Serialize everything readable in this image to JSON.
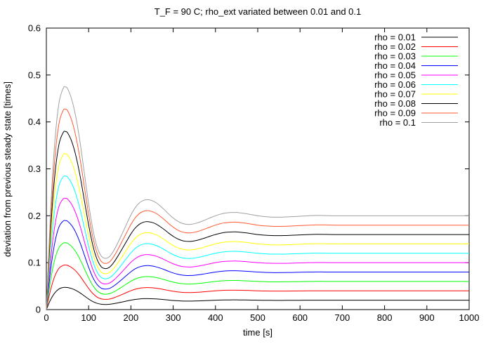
{
  "chart_data": {
    "type": "line",
    "title": "T_F = 90 C; rho_ext variated between 0.01 and 0.1",
    "xlabel": "time [s]",
    "ylabel": "deviation from previous steady state [times]",
    "xlim": [
      0,
      1000
    ],
    "ylim": [
      0,
      0.6
    ],
    "xticks": [
      0,
      100,
      200,
      300,
      400,
      500,
      600,
      700,
      800,
      900,
      1000
    ],
    "xtick_labels": [
      "0",
      "100",
      "200",
      "300",
      "400",
      "500",
      "600",
      "700",
      "800",
      "900",
      "1000"
    ],
    "yticks": [
      0,
      0.1,
      0.2,
      0.3,
      0.4,
      0.5,
      0.6
    ],
    "ytick_labels": [
      "0",
      "0.1",
      "0.2",
      "0.3",
      "0.4",
      "0.5",
      "0.6"
    ],
    "grid": false,
    "legend_position": "top-right",
    "x": [
      0,
      10,
      20,
      30,
      40,
      45,
      50,
      60,
      70,
      80,
      90,
      100,
      110,
      120,
      130,
      140,
      150,
      160,
      170,
      180,
      190,
      200,
      210,
      220,
      230,
      240,
      250,
      260,
      270,
      280,
      290,
      300,
      310,
      320,
      330,
      340,
      350,
      360,
      370,
      380,
      390,
      400,
      410,
      420,
      430,
      440,
      450,
      460,
      470,
      480,
      490,
      500,
      520,
      540,
      560,
      580,
      600,
      620,
      640,
      660,
      680,
      700,
      750,
      800,
      850,
      900,
      950,
      1000
    ],
    "series": [
      {
        "name": "rho = 0.01",
        "color": "#000000",
        "values": [
          0,
          0.021,
          0.0357,
          0.0441,
          0.0472,
          0.0474,
          0.0471,
          0.0448,
          0.0409,
          0.0355,
          0.029,
          0.0226,
          0.0171,
          0.0134,
          0.0114,
          0.0109,
          0.0114,
          0.0127,
          0.0144,
          0.0163,
          0.0183,
          0.0202,
          0.0217,
          0.0227,
          0.0233,
          0.0234,
          0.0232,
          0.0228,
          0.022,
          0.0212,
          0.0203,
          0.0195,
          0.0189,
          0.0184,
          0.0182,
          0.0182,
          0.0183,
          0.0186,
          0.0189,
          0.0193,
          0.0197,
          0.02,
          0.0203,
          0.0205,
          0.0206,
          0.0207,
          0.0207,
          0.0206,
          0.0205,
          0.0203,
          0.0202,
          0.02,
          0.0198,
          0.0197,
          0.0197,
          0.0198,
          0.0199,
          0.02,
          0.0201,
          0.02,
          0.02,
          0.02,
          0.02,
          0.02,
          0.02,
          0.02,
          0.02,
          0.02
        ]
      },
      {
        "name": "rho = 0.02",
        "color": "#ff0000",
        "values": [
          0,
          0.042,
          0.0714,
          0.0882,
          0.0944,
          0.0949,
          0.0943,
          0.0896,
          0.0818,
          0.071,
          0.058,
          0.0451,
          0.0342,
          0.0267,
          0.0228,
          0.0218,
          0.0227,
          0.0253,
          0.0288,
          0.0326,
          0.0365,
          0.0403,
          0.0434,
          0.0455,
          0.0466,
          0.0469,
          0.0465,
          0.0455,
          0.0441,
          0.0424,
          0.0406,
          0.0391,
          0.0378,
          0.0369,
          0.0364,
          0.0363,
          0.0366,
          0.0371,
          0.0378,
          0.0386,
          0.0393,
          0.04,
          0.0406,
          0.0411,
          0.0413,
          0.0414,
          0.0414,
          0.0412,
          0.041,
          0.0407,
          0.0403,
          0.04,
          0.0396,
          0.0394,
          0.0394,
          0.0396,
          0.0398,
          0.04,
          0.0401,
          0.0401,
          0.04,
          0.04,
          0.04,
          0.04,
          0.04,
          0.04,
          0.04,
          0.04
        ]
      },
      {
        "name": "rho = 0.03",
        "color": "#00ff00",
        "values": [
          0,
          0.063,
          0.1071,
          0.1323,
          0.1416,
          0.1423,
          0.1414,
          0.1344,
          0.1227,
          0.1065,
          0.087,
          0.0677,
          0.0513,
          0.0401,
          0.0342,
          0.0328,
          0.0341,
          0.038,
          0.0432,
          0.049,
          0.0548,
          0.0605,
          0.0651,
          0.0682,
          0.0699,
          0.0703,
          0.0697,
          0.0683,
          0.0661,
          0.0636,
          0.061,
          0.0586,
          0.0566,
          0.0553,
          0.0546,
          0.0545,
          0.0549,
          0.0557,
          0.0567,
          0.0578,
          0.059,
          0.06,
          0.0609,
          0.0616,
          0.0619,
          0.0621,
          0.0621,
          0.0618,
          0.0614,
          0.061,
          0.0605,
          0.06,
          0.0594,
          0.0591,
          0.0592,
          0.0594,
          0.0597,
          0.06,
          0.0602,
          0.0601,
          0.06,
          0.06,
          0.06,
          0.06,
          0.06,
          0.06,
          0.06,
          0.06
        ]
      },
      {
        "name": "rho = 0.04",
        "color": "#0000ff",
        "values": [
          0,
          0.084,
          0.1428,
          0.1764,
          0.1888,
          0.1897,
          0.1885,
          0.1792,
          0.1636,
          0.142,
          0.116,
          0.0902,
          0.0684,
          0.0535,
          0.0456,
          0.0437,
          0.0454,
          0.0507,
          0.0576,
          0.0653,
          0.0731,
          0.0806,
          0.0868,
          0.091,
          0.0932,
          0.0938,
          0.0929,
          0.091,
          0.0882,
          0.0849,
          0.0813,
          0.0781,
          0.0755,
          0.0737,
          0.0728,
          0.0727,
          0.0732,
          0.0743,
          0.0756,
          0.0771,
          0.0786,
          0.08,
          0.0812,
          0.0821,
          0.0826,
          0.0828,
          0.0828,
          0.0824,
          0.0819,
          0.0813,
          0.0806,
          0.08,
          0.0792,
          0.0788,
          0.0789,
          0.0792,
          0.0796,
          0.08,
          0.0802,
          0.0801,
          0.08,
          0.08,
          0.08,
          0.08,
          0.08,
          0.08,
          0.08,
          0.08
        ]
      },
      {
        "name": "rho = 0.05",
        "color": "#ff00ff",
        "values": [
          0,
          0.105,
          0.1785,
          0.2205,
          0.236,
          0.2372,
          0.2356,
          0.224,
          0.2045,
          0.1775,
          0.145,
          0.1128,
          0.0855,
          0.0668,
          0.057,
          0.0546,
          0.0568,
          0.0633,
          0.072,
          0.0816,
          0.0913,
          0.1008,
          0.1085,
          0.1137,
          0.1165,
          0.1172,
          0.1161,
          0.1138,
          0.1102,
          0.1061,
          0.1016,
          0.0976,
          0.0944,
          0.0921,
          0.091,
          0.0908,
          0.0915,
          0.0928,
          0.0945,
          0.0964,
          0.0983,
          0.1,
          0.1015,
          0.1026,
          0.1032,
          0.1035,
          0.1035,
          0.103,
          0.1024,
          0.1016,
          0.1008,
          0.1,
          0.099,
          0.0985,
          0.0986,
          0.099,
          0.0995,
          0.1,
          0.1003,
          0.1002,
          0.1,
          0.1,
          0.1,
          0.1,
          0.1,
          0.1,
          0.1,
          0.1
        ]
      },
      {
        "name": "rho = 0.06",
        "color": "#00ffff",
        "values": [
          0,
          0.126,
          0.2142,
          0.2646,
          0.2832,
          0.2846,
          0.2827,
          0.2688,
          0.2454,
          0.213,
          0.174,
          0.1354,
          0.1026,
          0.0802,
          0.0684,
          0.0655,
          0.0681,
          0.076,
          0.0864,
          0.0979,
          0.1096,
          0.1209,
          0.1302,
          0.1364,
          0.1398,
          0.1406,
          0.1394,
          0.1365,
          0.1323,
          0.1273,
          0.1219,
          0.1171,
          0.1133,
          0.1106,
          0.1092,
          0.109,
          0.1098,
          0.1114,
          0.1134,
          0.1157,
          0.118,
          0.12,
          0.1218,
          0.1231,
          0.1238,
          0.1242,
          0.1242,
          0.1236,
          0.1229,
          0.122,
          0.121,
          0.12,
          0.1188,
          0.1182,
          0.1183,
          0.1188,
          0.1194,
          0.12,
          0.1204,
          0.1202,
          0.12,
          0.12,
          0.12,
          0.12,
          0.12,
          0.12,
          0.12,
          0.12
        ]
      },
      {
        "name": "rho = 0.07",
        "color": "#ffff00",
        "values": [
          0,
          0.147,
          0.2499,
          0.3087,
          0.3304,
          0.3321,
          0.3298,
          0.3136,
          0.2863,
          0.2485,
          0.203,
          0.1579,
          0.1197,
          0.0936,
          0.0798,
          0.0764,
          0.0795,
          0.0886,
          0.1008,
          0.1142,
          0.1278,
          0.1411,
          0.1519,
          0.1592,
          0.1631,
          0.1641,
          0.1626,
          0.1593,
          0.1543,
          0.1485,
          0.1422,
          0.1366,
          0.1322,
          0.129,
          0.1274,
          0.1272,
          0.1281,
          0.1299,
          0.1323,
          0.135,
          0.1376,
          0.14,
          0.1421,
          0.1436,
          0.1445,
          0.1449,
          0.1449,
          0.1442,
          0.1434,
          0.1423,
          0.1411,
          0.14,
          0.1386,
          0.1379,
          0.138,
          0.1386,
          0.1393,
          0.14,
          0.1404,
          0.1403,
          0.14,
          0.14,
          0.14,
          0.14,
          0.14,
          0.14,
          0.14,
          0.14
        ]
      },
      {
        "name": "rho = 0.08",
        "color": "#000000",
        "values": [
          0,
          0.168,
          0.2856,
          0.3528,
          0.3776,
          0.3795,
          0.377,
          0.3584,
          0.3272,
          0.284,
          0.232,
          0.1805,
          0.1368,
          0.107,
          0.0912,
          0.0874,
          0.0909,
          0.1013,
          0.1152,
          0.1306,
          0.1461,
          0.1613,
          0.1736,
          0.1819,
          0.1864,
          0.1875,
          0.1858,
          0.1821,
          0.1764,
          0.1698,
          0.1626,
          0.1562,
          0.151,
          0.1474,
          0.1456,
          0.1453,
          0.1464,
          0.1485,
          0.1512,
          0.1542,
          0.1573,
          0.16,
          0.1624,
          0.1642,
          0.1651,
          0.1656,
          0.1656,
          0.1648,
          0.1638,
          0.1626,
          0.1613,
          0.16,
          0.1584,
          0.1576,
          0.1578,
          0.1584,
          0.1592,
          0.16,
          0.1605,
          0.1603,
          0.16,
          0.16,
          0.16,
          0.16,
          0.16,
          0.16,
          0.16,
          0.16
        ]
      },
      {
        "name": "rho = 0.09",
        "color": "#ff5a32",
        "values": [
          0,
          0.189,
          0.3213,
          0.3969,
          0.4248,
          0.427,
          0.4241,
          0.4032,
          0.3681,
          0.3195,
          0.261,
          0.203,
          0.1539,
          0.1203,
          0.1026,
          0.0983,
          0.1022,
          0.1139,
          0.1296,
          0.1469,
          0.1644,
          0.1814,
          0.1953,
          0.2047,
          0.2097,
          0.211,
          0.209,
          0.2048,
          0.1984,
          0.191,
          0.1829,
          0.1757,
          0.1699,
          0.1658,
          0.1638,
          0.1635,
          0.1647,
          0.167,
          0.1701,
          0.1735,
          0.1769,
          0.18,
          0.1827,
          0.1847,
          0.1858,
          0.1863,
          0.1863,
          0.1854,
          0.1843,
          0.1829,
          0.1814,
          0.18,
          0.1782,
          0.1773,
          0.1775,
          0.1782,
          0.1791,
          0.18,
          0.1805,
          0.1804,
          0.18,
          0.18,
          0.18,
          0.18,
          0.18,
          0.18,
          0.18,
          0.18
        ]
      },
      {
        "name": "rho = 0.1",
        "color": "#a0a0a0",
        "values": [
          0,
          0.21,
          0.357,
          0.441,
          0.472,
          0.4744,
          0.4712,
          0.448,
          0.409,
          0.355,
          0.29,
          0.2256,
          0.171,
          0.1337,
          0.114,
          0.1092,
          0.1136,
          0.1266,
          0.144,
          0.1632,
          0.1826,
          0.2016,
          0.217,
          0.2274,
          0.233,
          0.2344,
          0.2322,
          0.2276,
          0.2204,
          0.2122,
          0.2032,
          0.1952,
          0.1888,
          0.1842,
          0.182,
          0.1816,
          0.183,
          0.1856,
          0.189,
          0.1928,
          0.1966,
          0.2,
          0.203,
          0.2052,
          0.2064,
          0.207,
          0.207,
          0.206,
          0.2048,
          0.2032,
          0.2016,
          0.2,
          0.198,
          0.197,
          0.1972,
          0.198,
          0.199,
          0.2,
          0.2006,
          0.2004,
          0.2,
          0.2,
          0.2,
          0.2,
          0.2,
          0.2,
          0.2,
          0.2
        ]
      }
    ]
  }
}
